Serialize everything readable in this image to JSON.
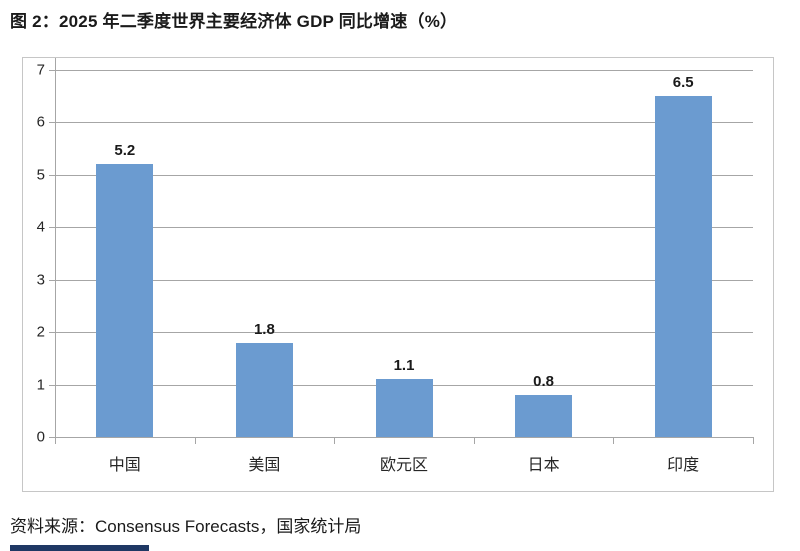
{
  "figure": {
    "title": "图 2：2025 年二季度世界主要经济体 GDP 同比增速（%）",
    "source": "资料来源：Consensus Forecasts，国家统计局"
  },
  "chart_data": {
    "type": "bar",
    "title": "2025 年二季度世界主要经济体 GDP 同比增速（%）",
    "categories": [
      "中国",
      "美国",
      "欧元区",
      "日本",
      "印度"
    ],
    "values": [
      5.2,
      1.8,
      1.1,
      0.8,
      6.5
    ],
    "data_labels": [
      "5.2",
      "1.8",
      "1.1",
      "0.8",
      "6.5"
    ],
    "xlabel": "",
    "ylabel": "",
    "ylim": [
      0,
      7
    ],
    "yticks": [
      0,
      1,
      2,
      3,
      4,
      5,
      6,
      7
    ],
    "grid": true,
    "legend": "none",
    "bar_color": "#6b9bd0",
    "gridline_color": "#a6a6a6",
    "axis_color": "#a6a6a6",
    "frame_color": "#c6c6c6",
    "label_color": "#262626"
  },
  "footer": {
    "accent_color": "#1f3864"
  }
}
